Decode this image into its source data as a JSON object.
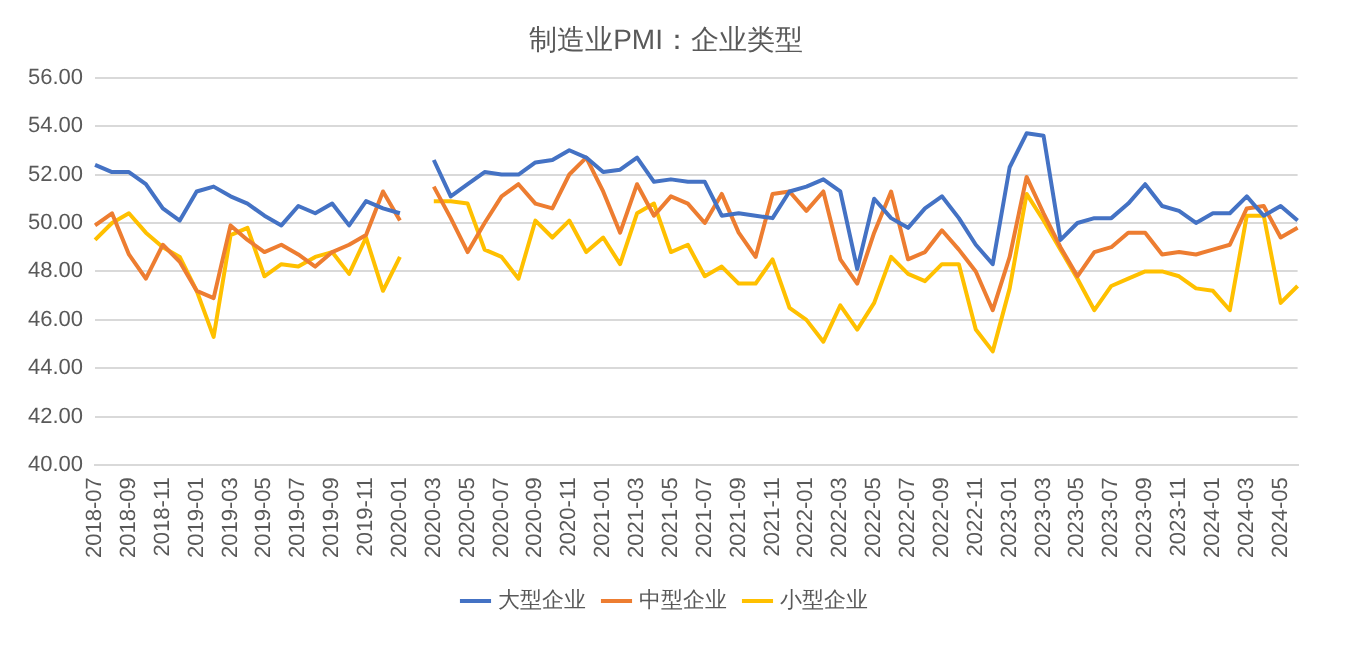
{
  "chart_data": {
    "type": "line",
    "title": "制造业PMI：企业类型",
    "categories": [
      "2018-07",
      null,
      "2018-09",
      null,
      "2018-11",
      null,
      "2019-01",
      null,
      "2019-03",
      null,
      "2019-05",
      null,
      "2019-07",
      null,
      "2019-09",
      null,
      "2019-11",
      null,
      "2020-01",
      null,
      "2020-03",
      null,
      "2020-05",
      null,
      "2020-07",
      null,
      "2020-09",
      null,
      "2020-11",
      null,
      "2021-01",
      null,
      "2021-03",
      null,
      "2021-05",
      null,
      "2021-07",
      null,
      "2021-09",
      null,
      "2021-11",
      null,
      "2022-01",
      null,
      "2022-03",
      null,
      "2022-05",
      null,
      "2022-07",
      null,
      "2022-09",
      null,
      "2022-11",
      null,
      "2023-01",
      null,
      "2023-03",
      null,
      "2023-05",
      null,
      "2023-07",
      null,
      "2023-09",
      null,
      "2023-11",
      null,
      "2024-01",
      null,
      "2024-03",
      null,
      "2024-05",
      null
    ],
    "series": [
      {
        "name": "大型企业",
        "color": "#4472c4",
        "values": [
          52.4,
          52.1,
          52.1,
          51.6,
          50.6,
          50.1,
          51.3,
          51.5,
          51.1,
          50.8,
          50.3,
          49.9,
          50.7,
          50.4,
          50.8,
          49.9,
          50.9,
          50.6,
          50.4,
          null,
          52.6,
          51.1,
          51.6,
          52.1,
          52.0,
          52.0,
          52.5,
          52.6,
          53.0,
          52.7,
          52.1,
          52.2,
          52.7,
          51.7,
          51.8,
          51.7,
          51.7,
          50.3,
          50.4,
          50.3,
          50.2,
          51.3,
          51.5,
          51.8,
          51.3,
          48.1,
          51.0,
          50.2,
          49.8,
          50.6,
          51.1,
          50.2,
          49.1,
          48.3,
          52.3,
          53.7,
          53.6,
          49.3,
          50.0,
          50.2,
          50.2,
          50.8,
          51.6,
          50.7,
          50.5,
          50.0,
          50.4,
          50.4,
          51.1,
          50.3,
          50.7,
          50.1
        ]
      },
      {
        "name": "中型企业",
        "color": "#ed7d31",
        "values": [
          49.9,
          50.4,
          48.7,
          47.7,
          49.1,
          48.4,
          47.2,
          46.9,
          49.9,
          49.3,
          48.8,
          49.1,
          48.7,
          48.2,
          48.8,
          49.1,
          49.5,
          51.3,
          50.1,
          null,
          51.5,
          50.2,
          48.8,
          50.0,
          51.1,
          51.6,
          50.8,
          50.6,
          52.0,
          52.7,
          51.3,
          49.6,
          51.6,
          50.3,
          51.1,
          50.8,
          50.0,
          51.2,
          49.6,
          48.6,
          51.2,
          51.3,
          50.5,
          51.3,
          48.5,
          47.5,
          49.6,
          51.3,
          48.5,
          48.8,
          49.7,
          48.9,
          48.0,
          46.4,
          48.6,
          51.9,
          50.4,
          49.0,
          47.8,
          48.8,
          49.0,
          49.6,
          49.6,
          48.7,
          48.8,
          48.7,
          48.9,
          49.1,
          50.6,
          50.7,
          49.4,
          49.8
        ]
      },
      {
        "name": "小型企业",
        "color": "#ffc000",
        "values": [
          49.3,
          50.0,
          50.4,
          49.6,
          49.0,
          48.6,
          47.2,
          45.3,
          49.5,
          49.8,
          47.8,
          48.3,
          48.2,
          48.6,
          48.8,
          47.9,
          49.4,
          47.2,
          48.6,
          null,
          50.9,
          50.9,
          50.8,
          48.9,
          48.6,
          47.7,
          50.1,
          49.4,
          50.1,
          48.8,
          49.4,
          48.3,
          50.4,
          50.8,
          48.8,
          49.1,
          47.8,
          48.2,
          47.5,
          47.5,
          48.5,
          46.5,
          46.0,
          45.1,
          46.6,
          45.6,
          46.7,
          48.6,
          47.9,
          47.6,
          48.3,
          48.3,
          45.6,
          44.7,
          47.3,
          51.2,
          50.1,
          48.9,
          47.7,
          46.4,
          47.4,
          47.7,
          48.0,
          48.0,
          47.8,
          47.3,
          47.2,
          46.4,
          50.3,
          50.3,
          46.7,
          47.4
        ]
      }
    ],
    "ylim": [
      40,
      56
    ],
    "yticks": [
      {
        "value": 40,
        "label": "40.00"
      },
      {
        "value": 42,
        "label": "42.00"
      },
      {
        "value": 44,
        "label": "44.00"
      },
      {
        "value": 46,
        "label": "46.00"
      },
      {
        "value": 48,
        "label": "48.00"
      },
      {
        "value": 50,
        "label": "50.00"
      },
      {
        "value": 52,
        "label": "52.00"
      },
      {
        "value": 54,
        "label": "54.00"
      },
      {
        "value": 56,
        "label": "56.00"
      }
    ],
    "grid": "y",
    "legend": "bottom",
    "marker": "none",
    "line_style": "solid"
  }
}
